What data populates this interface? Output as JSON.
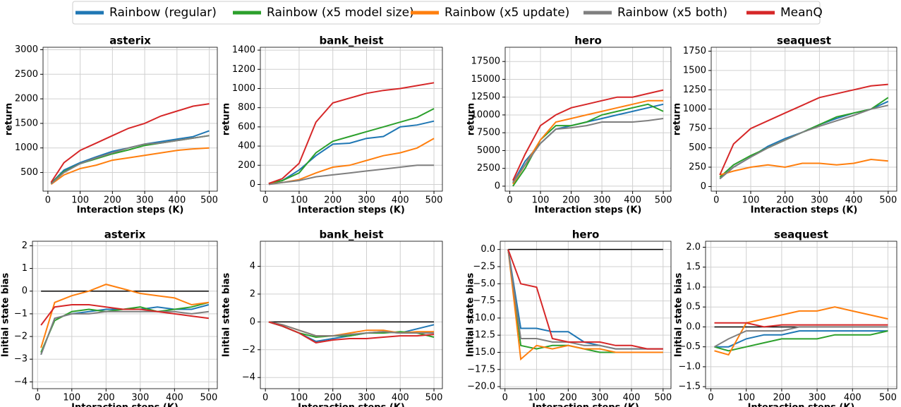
{
  "legend": [
    {
      "name": "Rainbow (regular)",
      "color": "#1f77b4"
    },
    {
      "name": "Rainbow (x5 model size)",
      "color": "#2ca02c"
    },
    {
      "name": "Rainbow (x5 update)",
      "color": "#ff7f0e"
    },
    {
      "name": "Rainbow (x5 both)",
      "color": "#7f7f7f"
    },
    {
      "name": "MeanQ",
      "color": "#d62728"
    }
  ],
  "chart_data": [
    {
      "type": "line",
      "title": "asterix",
      "xlabel": "Interaction steps (K)",
      "ylabel": "return",
      "grid": true,
      "x": [
        10,
        50,
        100,
        150,
        200,
        250,
        300,
        350,
        400,
        450,
        500
      ],
      "xlim": [
        -15,
        525
      ],
      "xticks": [
        0,
        100,
        200,
        300,
        400,
        500
      ],
      "ylim": [
        120,
        3050
      ],
      "yticks": [
        500,
        1000,
        1500,
        2000,
        2500,
        3000
      ],
      "series": [
        {
          "values": [
            280,
            550,
            700,
            820,
            930,
            1000,
            1080,
            1130,
            1180,
            1230,
            1350
          ]
        },
        {
          "values": [
            280,
            520,
            680,
            780,
            880,
            960,
            1050,
            1100,
            1150,
            1200,
            1250
          ]
        },
        {
          "values": [
            260,
            450,
            580,
            650,
            750,
            800,
            850,
            900,
            950,
            980,
            1000
          ]
        },
        {
          "values": [
            270,
            500,
            680,
            800,
            900,
            1000,
            1080,
            1100,
            1150,
            1200,
            1250
          ]
        },
        {
          "values": [
            300,
            700,
            950,
            1100,
            1250,
            1400,
            1500,
            1650,
            1750,
            1850,
            1900
          ]
        }
      ]
    },
    {
      "type": "line",
      "title": "bank_heist",
      "xlabel": "Interaction steps (K)",
      "ylabel": "return",
      "grid": true,
      "x": [
        10,
        50,
        100,
        150,
        200,
        250,
        300,
        350,
        400,
        450,
        500
      ],
      "xlim": [
        -15,
        525
      ],
      "xticks": [
        0,
        100,
        200,
        300,
        400,
        500
      ],
      "ylim": [
        -70,
        1430
      ],
      "yticks": [
        0,
        200,
        400,
        600,
        800,
        1000,
        1200,
        1400
      ],
      "series": [
        {
          "values": [
            10,
            40,
            150,
            300,
            420,
            430,
            480,
            500,
            600,
            620,
            660
          ]
        },
        {
          "values": [
            10,
            40,
            120,
            330,
            450,
            500,
            550,
            600,
            650,
            700,
            790
          ]
        },
        {
          "values": [
            5,
            20,
            50,
            120,
            180,
            200,
            250,
            300,
            330,
            380,
            480
          ]
        },
        {
          "values": [
            0,
            20,
            40,
            80,
            100,
            120,
            140,
            160,
            180,
            200,
            200
          ]
        },
        {
          "values": [
            10,
            60,
            220,
            650,
            850,
            900,
            950,
            980,
            1000,
            1030,
            1060
          ]
        }
      ]
    },
    {
      "type": "line",
      "title": "hero",
      "xlabel": "Interaction steps (K)",
      "ylabel": "return",
      "grid": true,
      "x": [
        10,
        50,
        100,
        150,
        200,
        250,
        300,
        350,
        400,
        450,
        500
      ],
      "xlim": [
        -15,
        525
      ],
      "xticks": [
        0,
        100,
        200,
        300,
        400,
        500
      ],
      "ylim": [
        -700,
        19500
      ],
      "yticks": [
        0,
        2500,
        5000,
        7500,
        10000,
        12500,
        15000,
        17500
      ],
      "series": [
        {
          "values": [
            500,
            3500,
            6000,
            8000,
            8500,
            9000,
            9500,
            10000,
            10500,
            11000,
            11500
          ]
        },
        {
          "values": [
            0,
            2500,
            6500,
            8500,
            8500,
            9000,
            10000,
            10500,
            11000,
            11500,
            10500
          ]
        },
        {
          "values": [
            300,
            3000,
            6500,
            9000,
            9500,
            10000,
            10500,
            11000,
            11500,
            12000,
            12000
          ]
        },
        {
          "values": [
            500,
            3000,
            6000,
            8000,
            8200,
            8500,
            9000,
            9000,
            9000,
            9200,
            9500
          ]
        },
        {
          "values": [
            800,
            4500,
            8500,
            10000,
            11000,
            11500,
            12000,
            12500,
            12500,
            13000,
            13500
          ]
        }
      ]
    },
    {
      "type": "line",
      "title": "seaquest",
      "xlabel": "Interaction steps (K)",
      "ylabel": "return",
      "grid": true,
      "x": [
        10,
        50,
        100,
        150,
        200,
        250,
        300,
        350,
        400,
        450,
        500
      ],
      "xlim": [
        -15,
        525
      ],
      "xticks": [
        0,
        100,
        200,
        300,
        400,
        500
      ],
      "ylim": [
        -60,
        1800
      ],
      "yticks": [
        0,
        250,
        500,
        750,
        1000,
        1250,
        1500,
        1750
      ],
      "series": [
        {
          "values": [
            100,
            250,
            380,
            520,
            620,
            700,
            800,
            880,
            950,
            1000,
            1100
          ]
        },
        {
          "values": [
            120,
            280,
            400,
            500,
            600,
            700,
            800,
            900,
            950,
            1000,
            1150
          ]
        },
        {
          "values": [
            150,
            200,
            250,
            280,
            250,
            300,
            300,
            280,
            300,
            350,
            330
          ]
        },
        {
          "values": [
            100,
            250,
            380,
            500,
            600,
            700,
            780,
            850,
            920,
            1000,
            1050
          ]
        },
        {
          "values": [
            150,
            550,
            750,
            850,
            950,
            1050,
            1150,
            1200,
            1250,
            1300,
            1320
          ]
        }
      ]
    },
    {
      "type": "line",
      "title": "asterix",
      "xlabel": "Interaction steps (K)",
      "ylabel": "Initial state bias",
      "grid": true,
      "hline": 0,
      "x": [
        10,
        50,
        100,
        150,
        200,
        250,
        300,
        350,
        400,
        450,
        500
      ],
      "xlim": [
        -15,
        525
      ],
      "xticks": [
        0,
        100,
        200,
        300,
        400,
        500
      ],
      "ylim": [
        -4.3,
        2.2
      ],
      "yticks": [
        {
          "value": -4,
          "label": "−4"
        },
        {
          "value": -3,
          "label": "−3"
        },
        {
          "value": -2,
          "label": "−2"
        },
        {
          "value": -1,
          "label": "−1"
        },
        0,
        1,
        2
      ],
      "series": [
        {
          "values": [
            -2.8,
            -1.2,
            -1.0,
            -0.9,
            -0.8,
            -0.8,
            -0.8,
            -0.7,
            -0.8,
            -0.8,
            -0.6
          ]
        },
        {
          "values": [
            -2.7,
            -1.3,
            -0.9,
            -0.8,
            -0.9,
            -0.8,
            -0.7,
            -0.9,
            -0.8,
            -0.7,
            -0.5
          ]
        },
        {
          "values": [
            -2.5,
            -0.5,
            -0.2,
            0.0,
            0.3,
            0.1,
            -0.1,
            -0.2,
            -0.3,
            -0.6,
            -0.5
          ]
        },
        {
          "values": [
            -2.8,
            -1.2,
            -1.0,
            -1.0,
            -0.9,
            -0.9,
            -0.9,
            -0.9,
            -0.9,
            -1.0,
            -0.9
          ]
        },
        {
          "values": [
            -1.5,
            -0.7,
            -0.6,
            -0.6,
            -0.7,
            -0.8,
            -0.8,
            -0.9,
            -1.0,
            -1.1,
            -1.2
          ]
        }
      ]
    },
    {
      "type": "line",
      "title": "bank_heist",
      "xlabel": "Interaction steps (K)",
      "ylabel": "Initial state bias",
      "grid": true,
      "hline": 0,
      "x": [
        10,
        50,
        100,
        150,
        200,
        250,
        300,
        350,
        400,
        450,
        500
      ],
      "xlim": [
        -15,
        525
      ],
      "xticks": [
        0,
        100,
        200,
        300,
        400,
        500
      ],
      "ylim": [
        -4.8,
        5.8
      ],
      "yticks": [
        {
          "value": -4,
          "label": "−4"
        },
        {
          "value": -2,
          "label": "−2"
        },
        0,
        2,
        4
      ],
      "series": [
        {
          "values": [
            0,
            -0.3,
            -0.8,
            -1.4,
            -1.2,
            -1.0,
            -0.8,
            -0.7,
            -0.8,
            -0.5,
            -0.2
          ]
        },
        {
          "values": [
            0,
            -0.3,
            -0.8,
            -1.1,
            -1.0,
            -1.0,
            -0.8,
            -0.8,
            -0.7,
            -0.8,
            -1.1
          ]
        },
        {
          "values": [
            0,
            -0.2,
            -0.6,
            -1.0,
            -1.0,
            -0.8,
            -0.6,
            -0.6,
            -0.8,
            -0.7,
            -0.7
          ]
        },
        {
          "values": [
            0,
            -0.2,
            -0.6,
            -1.0,
            -1.0,
            -0.9,
            -0.8,
            -0.7,
            -0.8,
            -0.8,
            -0.8
          ]
        },
        {
          "values": [
            0,
            -0.3,
            -0.8,
            -1.5,
            -1.3,
            -1.2,
            -1.2,
            -1.1,
            -1.0,
            -1.0,
            -0.9
          ]
        }
      ]
    },
    {
      "type": "line",
      "title": "hero",
      "xlabel": "Interaction steps (K)",
      "ylabel": "Initial state bias",
      "grid": true,
      "hline": 0,
      "x": [
        10,
        50,
        100,
        150,
        200,
        250,
        300,
        350,
        400,
        450,
        500
      ],
      "xlim": [
        -15,
        525
      ],
      "xticks": [
        0,
        100,
        200,
        300,
        400,
        500
      ],
      "ylim": [
        -20.3,
        1.2
      ],
      "yticks": [
        {
          "value": -20,
          "label": "−20.0"
        },
        {
          "value": -17.5,
          "label": "−17.5"
        },
        {
          "value": -15,
          "label": "−15.0"
        },
        {
          "value": -12.5,
          "label": "−12.5"
        },
        {
          "value": -10,
          "label": "−10.0"
        },
        {
          "value": -7.5,
          "label": "−7.5"
        },
        {
          "value": -5,
          "label": "−5.0"
        },
        {
          "value": -2.5,
          "label": "−2.5"
        },
        {
          "value": 0,
          "label": "0.0"
        }
      ],
      "series": [
        {
          "values": [
            0,
            -11.5,
            -11.5,
            -12,
            -12,
            -13.5,
            -14,
            -14.5,
            -14.5,
            -14.5,
            -14.5
          ]
        },
        {
          "values": [
            0,
            -14,
            -14.5,
            -14,
            -14,
            -14.5,
            -15,
            -15,
            -15,
            -15,
            -15
          ]
        },
        {
          "values": [
            0,
            -16,
            -14,
            -14.5,
            -14,
            -14.5,
            -14.5,
            -15,
            -15,
            -15,
            -15
          ]
        },
        {
          "values": [
            0,
            -13,
            -13,
            -13.5,
            -13.5,
            -14,
            -14,
            -14.5,
            -14.5,
            -14.5,
            -14.5
          ]
        },
        {
          "values": [
            0,
            -5,
            -5.5,
            -13,
            -13.5,
            -13.5,
            -13.5,
            -14,
            -14,
            -14.5,
            -14.5
          ]
        }
      ]
    },
    {
      "type": "line",
      "title": "seaquest",
      "xlabel": "Interaction steps (K)",
      "ylabel": "Initial state bias",
      "grid": true,
      "hline": 0,
      "x": [
        10,
        50,
        100,
        150,
        200,
        250,
        300,
        350,
        400,
        450,
        500
      ],
      "xlim": [
        -15,
        525
      ],
      "xticks": [
        0,
        100,
        200,
        300,
        400,
        500
      ],
      "ylim": [
        -1.55,
        2.15
      ],
      "yticks": [
        {
          "value": -1.5,
          "label": "−1.5"
        },
        {
          "value": -1,
          "label": "−1.0"
        },
        {
          "value": -0.5,
          "label": "−0.5"
        },
        {
          "value": 0,
          "label": "0.0"
        },
        0.5,
        {
          "value": 1,
          "label": "1.0"
        },
        1.5,
        {
          "value": 2,
          "label": "2.0"
        }
      ],
      "series": [
        {
          "values": [
            -0.5,
            -0.5,
            -0.3,
            -0.2,
            -0.2,
            -0.1,
            -0.1,
            -0.1,
            -0.1,
            -0.1,
            -0.1
          ]
        },
        {
          "values": [
            -0.5,
            -0.6,
            -0.5,
            -0.4,
            -0.3,
            -0.3,
            -0.3,
            -0.2,
            -0.2,
            -0.2,
            -0.1
          ]
        },
        {
          "values": [
            -0.6,
            -0.7,
            0.1,
            0.2,
            0.3,
            0.4,
            0.4,
            0.5,
            0.4,
            0.3,
            0.2
          ]
        },
        {
          "values": [
            -0.5,
            -0.3,
            -0.1,
            -0.1,
            -0.1,
            0.0,
            0.0,
            0.0,
            0.0,
            0.0,
            0.0
          ]
        },
        {
          "values": [
            0.1,
            0.1,
            0.1,
            0.0,
            0.05,
            0.05,
            0.05,
            0.05,
            0.05,
            0.05,
            0.05
          ]
        }
      ]
    }
  ]
}
